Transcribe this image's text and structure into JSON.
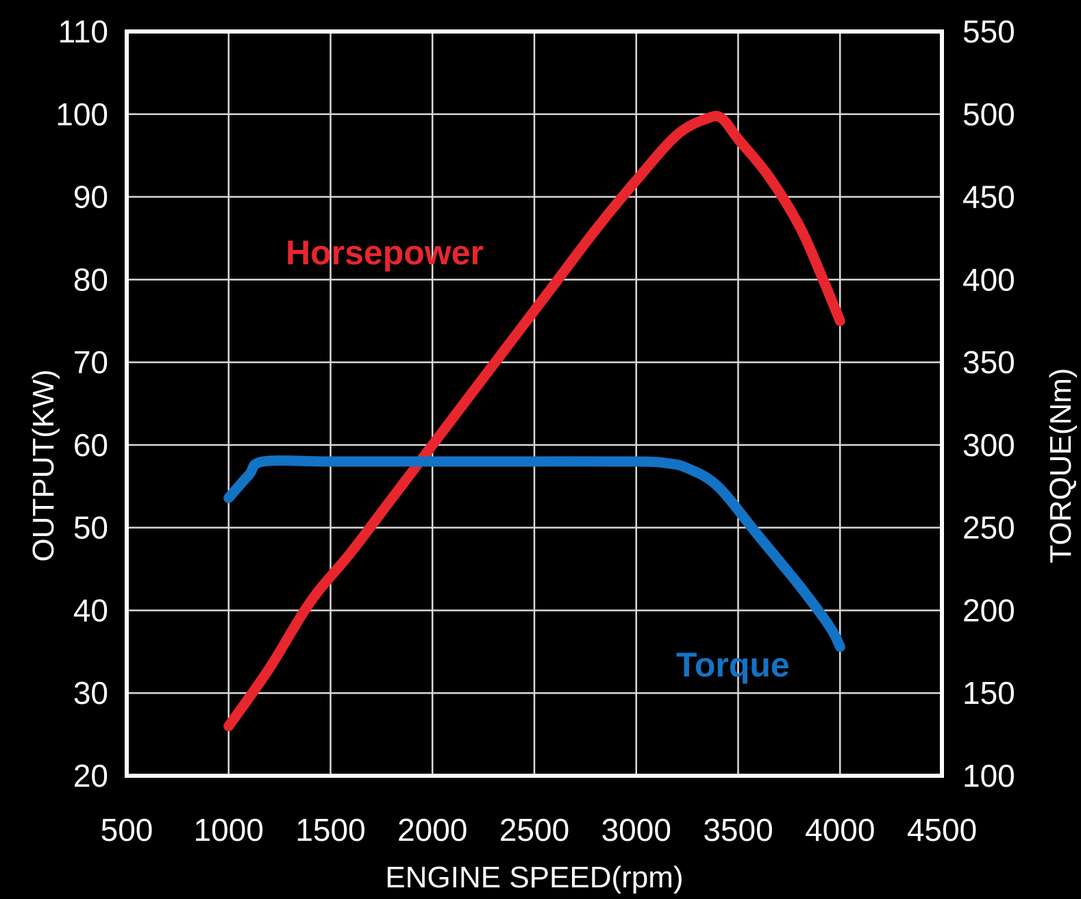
{
  "chart_data": {
    "type": "line",
    "xlabel": "ENGINE SPEED(rpm)",
    "ylabel": "OUTPUT(KW)",
    "y2label": "TORQUE(Nm)",
    "xlim": [
      500,
      4500
    ],
    "ylim": [
      20,
      110
    ],
    "y2lim": [
      100,
      550
    ],
    "xticks": [
      500,
      1000,
      1500,
      2000,
      2500,
      3000,
      3500,
      4000,
      4500
    ],
    "yticks": [
      20,
      30,
      40,
      50,
      60,
      70,
      80,
      90,
      100,
      110
    ],
    "y2ticks": [
      100,
      150,
      200,
      250,
      300,
      350,
      400,
      450,
      500,
      550
    ],
    "grid": true,
    "background": "#000000",
    "series": [
      {
        "name": "Horsepower",
        "axis": "left",
        "color": "#e8262e",
        "x": [
          1000,
          1200,
          1400,
          1600,
          1800,
          2000,
          2200,
          2400,
          2600,
          2800,
          3000,
          3200,
          3350,
          3420,
          3500,
          3650,
          3800,
          3900,
          4000
        ],
        "values": [
          26,
          33,
          41,
          47,
          53.5,
          60,
          66.5,
          73,
          79.5,
          86,
          92,
          97.5,
          99.5,
          99.5,
          97,
          92.5,
          86.5,
          81,
          75
        ]
      },
      {
        "name": "Torque",
        "axis": "right",
        "color": "#1473c4",
        "x": [
          1000,
          1100,
          1170,
          1500,
          2000,
          2500,
          3000,
          3150,
          3250,
          3400,
          3600,
          3800,
          3950,
          4000
        ],
        "values": [
          268,
          282,
          290,
          290,
          290,
          290,
          290,
          289,
          286,
          275,
          245,
          215,
          190,
          178
        ]
      }
    ]
  }
}
